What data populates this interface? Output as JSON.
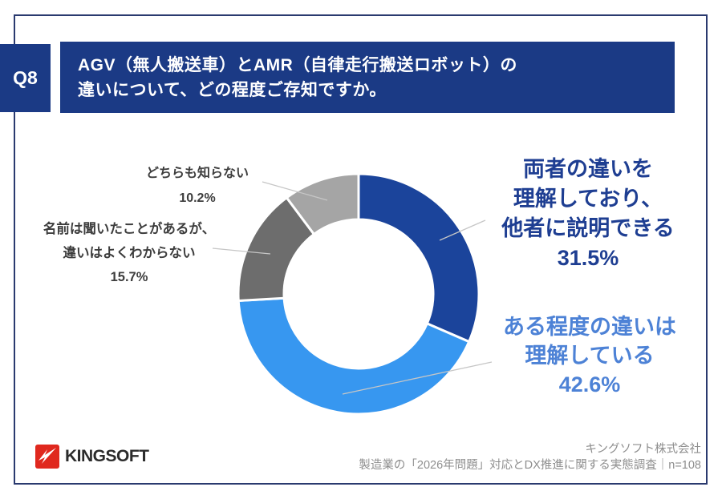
{
  "question": {
    "number": "Q8",
    "title_line1": "AGV（無人搬送車）とAMR（自律走行搬送ロボット）の",
    "title_line2": "違いについて、どの程度ご存知ですか。"
  },
  "chart_data": {
    "type": "pie",
    "donut": true,
    "title": "AGV（無人搬送車）とAMR（自律走行搬送ロボット）の違いについて、どの程度ご存知ですか。",
    "start_angle_deg": 0,
    "direction": "clockwise",
    "inner_radius_ratio": 0.62,
    "legend_position": "callouts",
    "segments": [
      {
        "label": "両者の違いを理解しており、他者に説明できる",
        "value": 31.5,
        "color": "#1B449B"
      },
      {
        "label": "ある程度の違いは理解している",
        "value": 42.6,
        "color": "#3797F0"
      },
      {
        "label": "名前は聞いたことがあるが、違いはよくわからない",
        "value": 15.7,
        "color": "#6D6D6D"
      },
      {
        "label": "どちらも知らない",
        "value": 10.2,
        "color": "#A5A5A5"
      }
    ]
  },
  "callouts": {
    "right1": {
      "lines": [
        "両者の違いを",
        "理解しており、",
        "他者に説明できる"
      ],
      "value": "31.5%"
    },
    "right2": {
      "lines": [
        "ある程度の違いは",
        "理解している"
      ],
      "value": "42.6%"
    },
    "left1": {
      "lines": [
        "どちらも知らない"
      ],
      "value": "10.2%"
    },
    "left2": {
      "lines": [
        "名前は聞いたことがあるが、",
        "違いはよくわからない"
      ],
      "value": "15.7%"
    }
  },
  "footer": {
    "logo_text": "KINGSOFT",
    "company": "キングソフト株式会社",
    "survey": "製造業の「2026年問題」対応とDX推進に関する実態調査｜n=108"
  },
  "colors": {
    "accent_navy": "#1B3A85",
    "frame": "#2A3A6F",
    "callout_blue": "#4D82D6",
    "logo_red": "#E0281E",
    "leader_line": "#C6C6C6"
  }
}
